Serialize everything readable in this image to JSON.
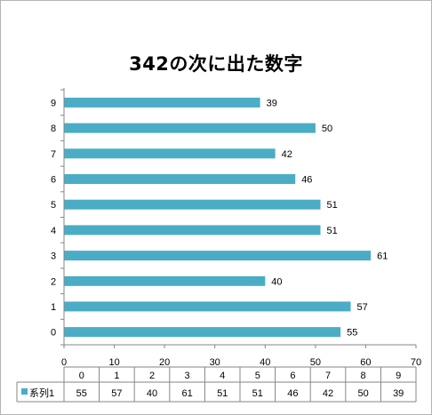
{
  "chart_data": {
    "type": "bar",
    "orientation": "horizontal",
    "title": "342の次に出た数字",
    "categories": [
      "0",
      "1",
      "2",
      "3",
      "4",
      "5",
      "6",
      "7",
      "8",
      "9"
    ],
    "series": [
      {
        "name": "系列1",
        "values": [
          55,
          57,
          40,
          61,
          51,
          51,
          46,
          42,
          50,
          39
        ],
        "color": "#4bacc6"
      }
    ],
    "xlim": [
      0,
      70
    ],
    "xticks": [
      "0",
      "10",
      "20",
      "30",
      "40",
      "50",
      "60",
      "70"
    ],
    "grid": false,
    "data_labels": true,
    "data_table": true
  }
}
